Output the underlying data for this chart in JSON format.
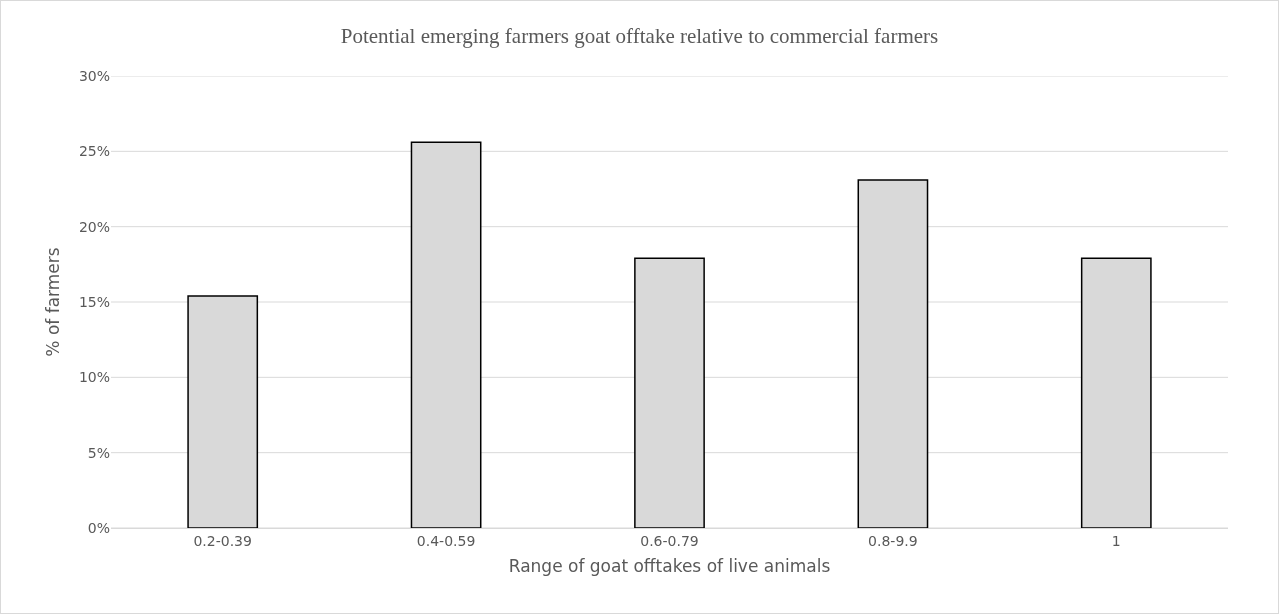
{
  "chart_data": {
    "type": "bar",
    "title": "Potential emerging farmers goat offtake relative to commercial farmers",
    "xlabel": "Range of goat offtakes of live animals",
    "ylabel": "% of farmers",
    "categories": [
      "0.2-0.39",
      "0.4-0.59",
      "0.6-0.79",
      "0.8-9.9",
      "1"
    ],
    "values": [
      15.4,
      25.6,
      17.9,
      23.1,
      17.9
    ],
    "color": "#d9d9d9",
    "ylim": [
      0,
      30
    ],
    "yticks": [
      {
        "value": 0,
        "label": "0%"
      },
      {
        "value": 5,
        "label": "5%"
      },
      {
        "value": 10,
        "label": "10%"
      },
      {
        "value": 15,
        "label": "15%"
      },
      {
        "value": 20,
        "label": "20%"
      },
      {
        "value": 25,
        "label": "25%"
      },
      {
        "value": 30,
        "label": "30%"
      }
    ],
    "grid": "y"
  }
}
